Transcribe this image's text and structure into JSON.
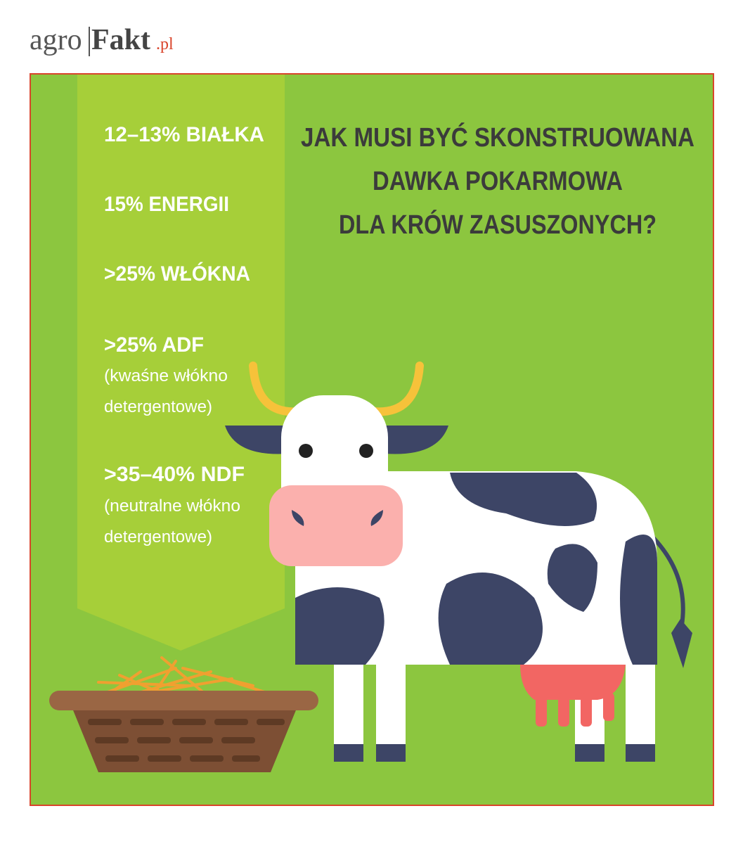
{
  "logo": {
    "part1": "agro",
    "part2": "Fakt",
    "domain": ".pl"
  },
  "title": {
    "lines": [
      "JAK MUSI BYĆ SKONSTRUOWANA",
      "DAWKA POKARMOWA",
      "DLA KRÓW ZASUSZONYCH?"
    ]
  },
  "items": [
    {
      "label": "12–13% BIAŁKA"
    },
    {
      "label": "15% ENERGII"
    },
    {
      "label": ">25% WŁÓKNA"
    },
    {
      "label": ">25% ADF",
      "note": [
        "(kwaśne włókno",
        "detergentowe)"
      ]
    },
    {
      "label": ">35–40% NDF",
      "note": [
        "(neutralne włókno",
        "detergentowe)"
      ]
    }
  ]
}
